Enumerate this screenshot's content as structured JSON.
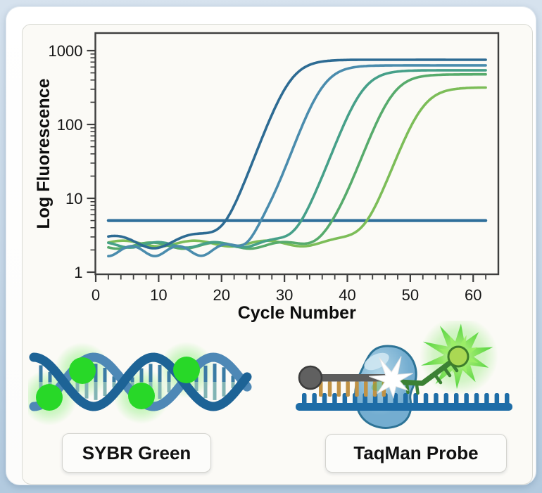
{
  "chart_data": {
    "type": "line",
    "title": "",
    "xlabel": "Cycle Number",
    "ylabel": "Log Fluorescence",
    "x_axis": {
      "min": 0,
      "max": 64,
      "data_start": 2,
      "data_end": 62,
      "major_ticks": [
        0,
        10,
        20,
        30,
        40,
        50,
        60
      ],
      "minor_step": 2
    },
    "y_axis": {
      "scale": "log",
      "min": 1,
      "max": 1750,
      "major_ticks": [
        1,
        10,
        100,
        1000
      ],
      "tick_labels": [
        "1",
        "10",
        "100",
        "1000"
      ]
    },
    "grid": "off",
    "legend": "none",
    "threshold": {
      "value": 5,
      "color": "#2f6f9b",
      "x_start": 2,
      "x_end": 62
    },
    "sigmoid_k": 0.55,
    "series": [
      {
        "name": "curve-1",
        "color": "#2d6b93",
        "ct": 20.5,
        "plateau": 750,
        "baseline": 2.6,
        "wiggle": {
          "amp": 0.5,
          "freq": 0.5,
          "phase": 0.07
        }
      },
      {
        "name": "curve-2",
        "color": "#4a8cad",
        "ct": 26.0,
        "plateau": 630,
        "baseline": 1.95,
        "wiggle": {
          "amp": 0.3,
          "freq": 0.85,
          "phase": -3.27
        }
      },
      {
        "name": "curve-3",
        "color": "#46a089",
        "ct": 32.5,
        "plateau": 540,
        "baseline": 2.35,
        "wiggle": {
          "amp": 0.2,
          "freq": 0.7,
          "phase": 0.9
        }
      },
      {
        "name": "curve-4",
        "color": "#57ab6c",
        "ct": 37.5,
        "plateau": 475,
        "baseline": 2.3,
        "wiggle": {
          "amp": 0.22,
          "freq": 0.6,
          "phase": 2.6
        }
      },
      {
        "name": "curve-5",
        "color": "#7cbd58",
        "ct": 43.0,
        "plateau": 315,
        "baseline": 2.45,
        "wiggle": {
          "amp": 0.22,
          "freq": 0.55,
          "phase": -0.8
        }
      }
    ]
  },
  "labels": {
    "sybr_green": "SYBR Green",
    "taqman_probe": "TaqMan Probe"
  },
  "icons": {
    "sybr": [
      "dna-helix-icon",
      "sybr-dye-glow-dot"
    ],
    "taqman": [
      "template-strand-icon",
      "primer-strand-icon",
      "quencher-icon",
      "polymerase-icon",
      "cleavage-flash-icon",
      "probe-arm-icon",
      "fluorophore-icon",
      "fluorescence-burst-icon"
    ]
  },
  "colors": {
    "axis": "#3e3e3e",
    "tick_text": "#151515",
    "helix_strand_dark": "#1d6396",
    "helix_strand_light": "#4e88b6",
    "helix_rung_top": "#3a7ba4",
    "helix_rung_bottom": "#82b4b4",
    "dye_green": "#28d828",
    "template_blue": "#1e6da7",
    "primer_gray": "#5d5d5d",
    "quencher_gray": "#606060",
    "gold_bases": "#c09245",
    "polymerase_fill": "#8abdd6",
    "polymerase_outline": "#2d7396",
    "probe_green": "#3c8134",
    "fluorophore_fill": "#aad853",
    "burst_green": "#49d233"
  }
}
